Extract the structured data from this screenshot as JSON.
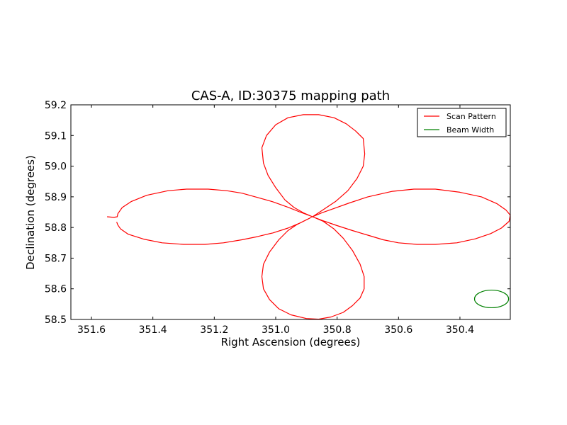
{
  "chart_data": {
    "type": "line",
    "title": "CAS-A, ID:30375 mapping path",
    "xlabel": "Right Ascension (degrees)",
    "ylabel": "Declination (degrees)",
    "xlim": [
      351.667,
      350.236
    ],
    "ylim": [
      58.5,
      59.2
    ],
    "x_inverted": true,
    "xticks": [
      "351.6",
      "351.4",
      "351.2",
      "351.0",
      "350.8",
      "350.6",
      "350.4"
    ],
    "yticks": [
      "58.5",
      "58.6",
      "58.7",
      "58.8",
      "58.9",
      "59.0",
      "59.1",
      "59.2"
    ],
    "grid": false,
    "legend": {
      "position": "top-right"
    },
    "colors": {
      "scan": "#ff0000",
      "beam": "#008000"
    },
    "series": [
      {
        "name": "Scan Pattern",
        "points": [
          [
            351.549,
            58.835
          ],
          [
            351.527,
            58.833
          ],
          [
            351.516,
            58.835
          ],
          [
            351.514,
            58.845
          ],
          [
            351.5,
            58.865
          ],
          [
            351.47,
            58.885
          ],
          [
            351.42,
            58.905
          ],
          [
            351.35,
            58.92
          ],
          [
            351.29,
            58.925
          ],
          [
            351.22,
            58.925
          ],
          [
            351.16,
            58.92
          ],
          [
            351.11,
            58.912
          ],
          [
            351.06,
            58.898
          ],
          [
            351.01,
            58.884
          ],
          [
            350.96,
            58.866
          ],
          [
            350.92,
            58.85
          ],
          [
            350.88,
            58.835
          ],
          [
            350.84,
            58.82
          ],
          [
            350.8,
            58.806
          ],
          [
            350.75,
            58.79
          ],
          [
            350.7,
            58.775
          ],
          [
            350.65,
            58.76
          ],
          [
            350.6,
            58.75
          ],
          [
            350.54,
            58.745
          ],
          [
            350.48,
            58.745
          ],
          [
            350.41,
            58.75
          ],
          [
            350.35,
            58.763
          ],
          [
            350.3,
            58.78
          ],
          [
            350.265,
            58.798
          ],
          [
            350.24,
            58.82
          ],
          [
            350.236,
            58.84
          ],
          [
            350.25,
            58.857
          ],
          [
            350.28,
            58.878
          ],
          [
            350.33,
            58.9
          ],
          [
            350.4,
            58.915
          ],
          [
            350.48,
            58.925
          ],
          [
            350.55,
            58.925
          ],
          [
            350.62,
            58.918
          ],
          [
            350.7,
            58.9
          ],
          [
            350.76,
            58.88
          ],
          [
            350.81,
            58.862
          ],
          [
            350.85,
            58.848
          ],
          [
            350.88,
            58.835
          ],
          [
            350.9,
            58.825
          ],
          [
            350.93,
            58.81
          ],
          [
            350.96,
            58.79
          ],
          [
            350.99,
            58.76
          ],
          [
            351.02,
            58.72
          ],
          [
            351.04,
            58.68
          ],
          [
            351.045,
            58.64
          ],
          [
            351.04,
            58.6
          ],
          [
            351.02,
            58.565
          ],
          [
            350.99,
            58.535
          ],
          [
            350.95,
            58.515
          ],
          [
            350.9,
            58.503
          ],
          [
            350.86,
            58.501
          ],
          [
            350.82,
            58.508
          ],
          [
            350.78,
            58.523
          ],
          [
            350.75,
            58.545
          ],
          [
            350.725,
            58.57
          ],
          [
            350.712,
            58.6
          ],
          [
            350.712,
            58.64
          ],
          [
            350.725,
            58.68
          ],
          [
            350.75,
            58.725
          ],
          [
            350.78,
            58.765
          ],
          [
            350.81,
            58.795
          ],
          [
            350.845,
            58.82
          ],
          [
            350.88,
            58.835
          ],
          [
            350.91,
            58.848
          ],
          [
            350.94,
            58.865
          ],
          [
            350.97,
            58.89
          ],
          [
            351.0,
            58.93
          ],
          [
            351.025,
            58.97
          ],
          [
            351.04,
            59.01
          ],
          [
            351.045,
            59.06
          ],
          [
            351.03,
            59.1
          ],
          [
            351.0,
            59.135
          ],
          [
            350.96,
            59.158
          ],
          [
            350.91,
            59.168
          ],
          [
            350.86,
            59.168
          ],
          [
            350.81,
            59.158
          ],
          [
            350.77,
            59.138
          ],
          [
            350.74,
            59.115
          ],
          [
            350.715,
            59.09
          ],
          [
            350.71,
            59.04
          ],
          [
            350.715,
            59.0
          ],
          [
            350.735,
            58.96
          ],
          [
            350.765,
            58.92
          ],
          [
            350.805,
            58.885
          ],
          [
            350.845,
            58.858
          ],
          [
            350.88,
            58.835
          ],
          [
            350.92,
            58.815
          ],
          [
            350.96,
            58.798
          ],
          [
            351.01,
            58.782
          ],
          [
            351.06,
            58.77
          ],
          [
            351.11,
            58.76
          ],
          [
            351.17,
            58.75
          ],
          [
            351.23,
            58.745
          ],
          [
            351.3,
            58.745
          ],
          [
            351.37,
            58.75
          ],
          [
            351.43,
            58.762
          ],
          [
            351.48,
            58.778
          ],
          [
            351.505,
            58.795
          ],
          [
            351.514,
            58.808
          ],
          [
            351.518,
            58.818
          ]
        ]
      },
      {
        "name": "Beam Width",
        "type": "circle",
        "center": [
          350.297,
          58.567
        ],
        "radius_deg": 0.0555
      }
    ]
  }
}
